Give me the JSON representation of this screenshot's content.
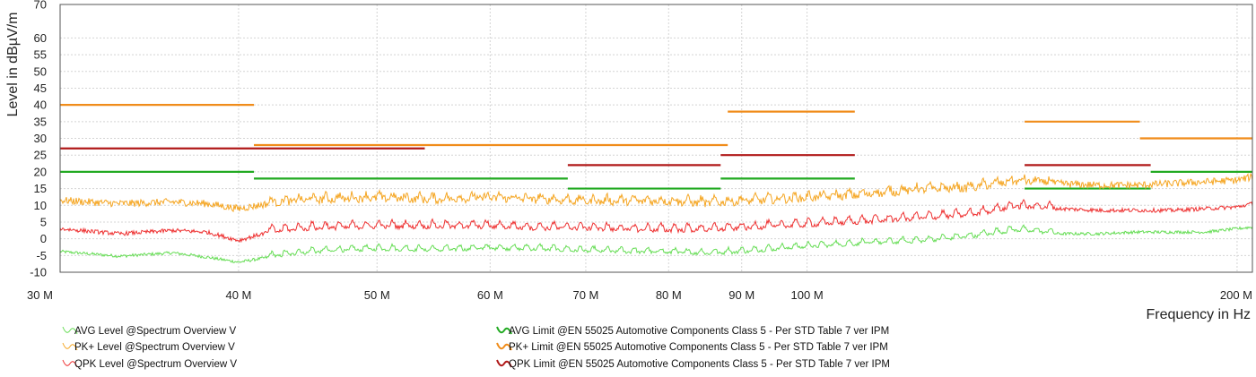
{
  "chart_data": {
    "type": "line",
    "xscale": "log",
    "xlabel": "Frequency in Hz",
    "ylabel": "Level in dBµV/m",
    "xlim": [
      30,
      205
    ],
    "ylim": [
      -10,
      70
    ],
    "grid": true,
    "legend_position": "bottom",
    "x_ticks": [
      {
        "value": 30,
        "label": "30 M"
      },
      {
        "value": 40,
        "label": "40 M"
      },
      {
        "value": 50,
        "label": "50 M"
      },
      {
        "value": 60,
        "label": "60 M"
      },
      {
        "value": 70,
        "label": "70 M"
      },
      {
        "value": 80,
        "label": "80 M"
      },
      {
        "value": 90,
        "label": "90 M"
      },
      {
        "value": 100,
        "label": "100 M"
      },
      {
        "value": 200,
        "label": "200 M"
      }
    ],
    "y_ticks": [
      -10,
      -5,
      0,
      5,
      10,
      15,
      20,
      25,
      30,
      35,
      40,
      45,
      50,
      55,
      60,
      70
    ],
    "series": [
      {
        "name": "AVG Level @Spectrum Overview V",
        "color": "#66dd55",
        "x": [
          30,
          33,
          36,
          38,
          40,
          42,
          45,
          50,
          55,
          60,
          65,
          70,
          75,
          80,
          85,
          90,
          95,
          100,
          110,
          120,
          130,
          140,
          150,
          160,
          170,
          180,
          190,
          200,
          205
        ],
        "y": [
          -3.8,
          -5.2,
          -4.2,
          -5.5,
          -7,
          -5.5,
          -4,
          -3.2,
          -3.5,
          -3,
          -3.2,
          -3.8,
          -4,
          -4.2,
          -4.5,
          -4,
          -3.2,
          -2.5,
          -1.5,
          -0.8,
          0.5,
          2.5,
          1.5,
          1.5,
          2,
          2,
          2,
          3,
          3.5
        ]
      },
      {
        "name": "PK+ Level @Spectrum Overview V",
        "color": "#f5a623",
        "x": [
          30,
          33,
          36,
          38,
          40,
          42,
          45,
          50,
          55,
          60,
          65,
          70,
          75,
          80,
          85,
          90,
          95,
          100,
          110,
          120,
          130,
          140,
          150,
          160,
          170,
          180,
          190,
          200,
          205
        ],
        "y": [
          11.5,
          10.5,
          11,
          10.5,
          9,
          10.5,
          11.5,
          12,
          11.5,
          12,
          11.5,
          11,
          11,
          11,
          10.5,
          11,
          11.5,
          12,
          13,
          14.5,
          15,
          17,
          16.5,
          16,
          16,
          16.5,
          17,
          17.5,
          18.5
        ]
      },
      {
        "name": "QPK Level @Spectrum Overview V",
        "color": "#ee3030",
        "x": [
          30,
          33,
          36,
          38,
          40,
          42,
          45,
          50,
          55,
          60,
          65,
          70,
          75,
          80,
          85,
          90,
          95,
          100,
          110,
          120,
          130,
          140,
          150,
          160,
          170,
          180,
          190,
          200,
          205
        ],
        "y": [
          3,
          1.5,
          2.5,
          2,
          -0.5,
          2,
          3,
          3.5,
          3.5,
          3.5,
          3,
          3,
          2.5,
          2.5,
          2.5,
          3,
          3.5,
          4,
          5,
          6,
          7,
          9.5,
          9,
          8.5,
          8.5,
          8.5,
          9,
          9.5,
          10.5
        ]
      },
      {
        "name": "AVG Limit @EN 55025 Automotive Components Class 5 - Per STD Table 7 ver IPM",
        "color": "#22aa22",
        "segments": [
          {
            "x": [
              30,
              41
            ],
            "y": 20
          },
          {
            "x": [
              41,
              68
            ],
            "y": 18
          },
          {
            "x": [
              68,
              87
            ],
            "y": 15
          },
          {
            "x": [
              87,
              108
            ],
            "y": 18
          },
          {
            "x": [
              142,
              174
            ],
            "y": 15
          },
          {
            "x": [
              174,
              205
            ],
            "y": 20
          }
        ]
      },
      {
        "name": "PK+ Limit @EN 55025 Automotive Components Class 5 - Per STD Table 7 ver IPM",
        "color": "#f08c1a",
        "segments": [
          {
            "x": [
              30,
              41
            ],
            "y": 40
          },
          {
            "x": [
              41,
              88
            ],
            "y": 28
          },
          {
            "x": [
              88,
              108
            ],
            "y": 38
          },
          {
            "x": [
              142,
              171
            ],
            "y": 35
          },
          {
            "x": [
              171,
              205
            ],
            "y": 30
          }
        ]
      },
      {
        "name": "QPK Limit @EN 55025 Automotive Components Class 5 - Per STD Table 7 ver IPM",
        "color": "#b01818",
        "segments": [
          {
            "x": [
              30,
              54
            ],
            "y": 27
          },
          {
            "x": [
              68,
              87
            ],
            "y": 22
          },
          {
            "x": [
              87,
              108
            ],
            "y": 25
          },
          {
            "x": [
              142,
              174
            ],
            "y": 22
          }
        ]
      }
    ]
  }
}
